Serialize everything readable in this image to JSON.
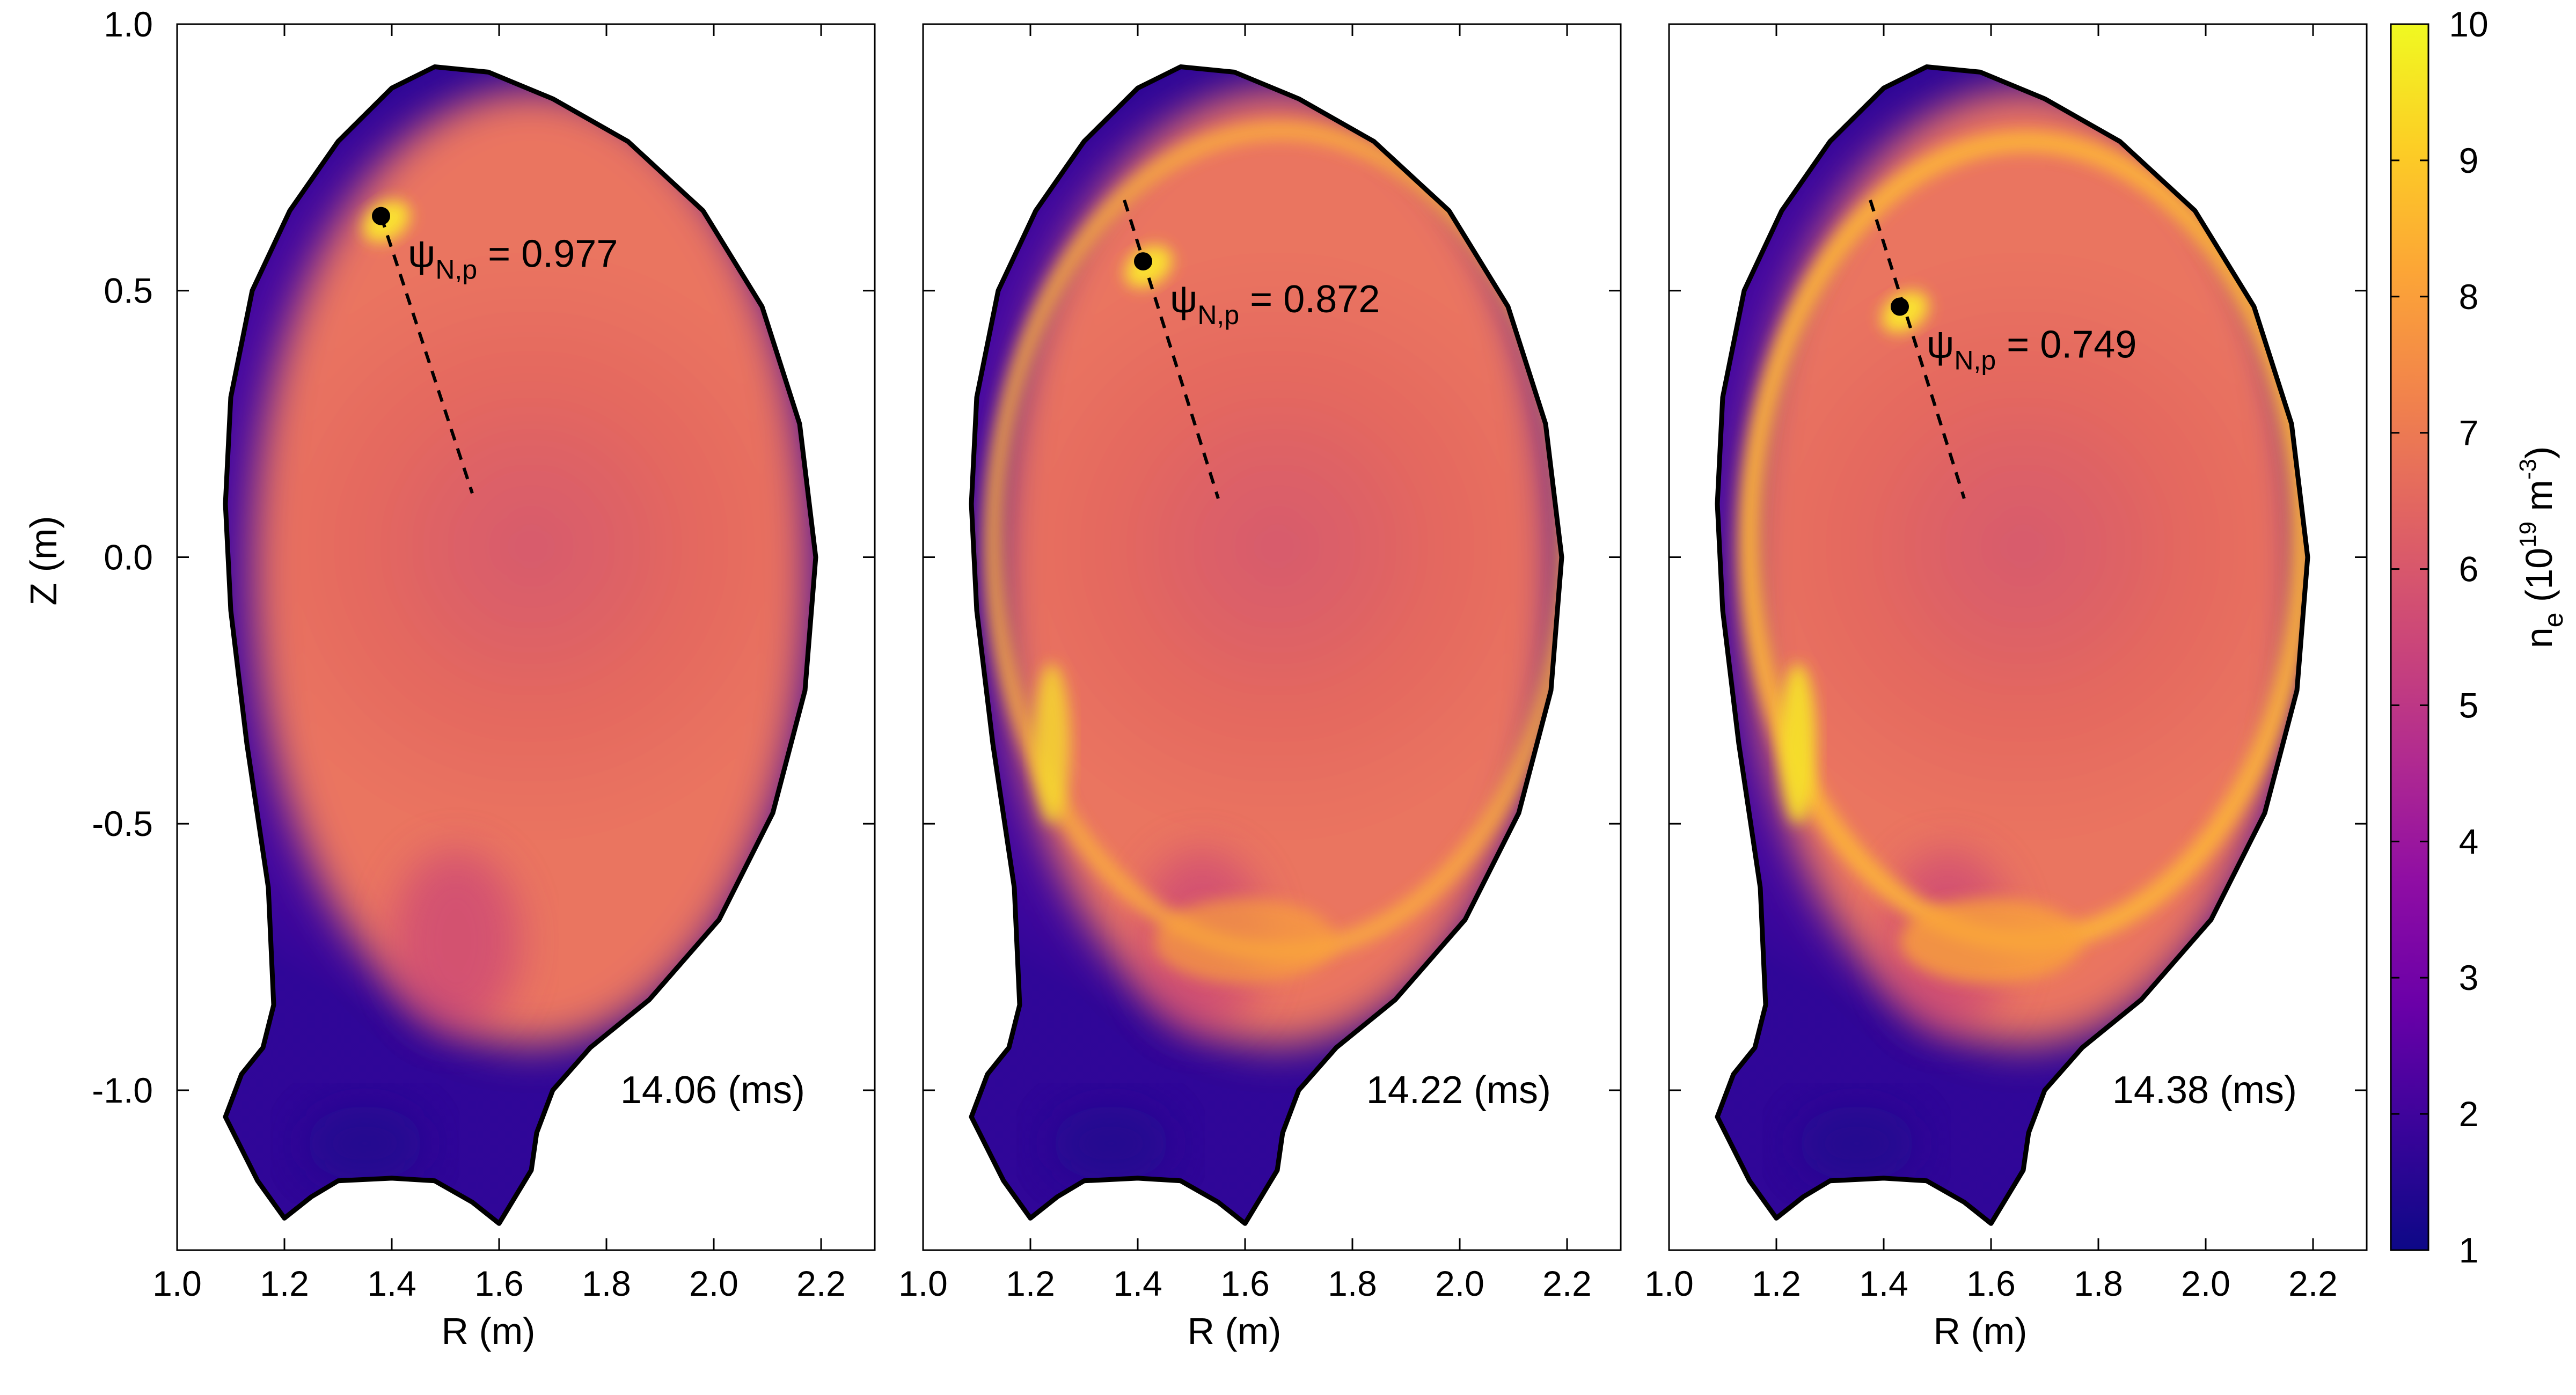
{
  "chart_data": {
    "type": "heatmap",
    "panels": [
      {
        "time_label": "14.06 (ms)",
        "psi_label": "0.977",
        "marker": {
          "R": 1.38,
          "Z": 0.64
        },
        "dashed_line": {
          "R": [
            1.38,
            1.55
          ],
          "Z": [
            0.64,
            0.12
          ]
        },
        "bright_ring_intensity": 0.0
      },
      {
        "time_label": "14.22 (ms)",
        "psi_label": "0.872",
        "marker": {
          "R": 1.41,
          "Z": 0.555
        },
        "dashed_line": {
          "R": [
            1.375,
            1.55
          ],
          "Z": [
            0.67,
            0.11
          ]
        },
        "bright_ring_intensity": 0.6
      },
      {
        "time_label": "14.38 (ms)",
        "psi_label": "0.749",
        "marker": {
          "R": 1.43,
          "Z": 0.47
        },
        "dashed_line": {
          "R": [
            1.375,
            1.55
          ],
          "Z": [
            0.67,
            0.11
          ]
        },
        "bright_ring_intensity": 1.0
      }
    ],
    "x_axis": {
      "label": "R (m)",
      "range": [
        1.0,
        2.3
      ],
      "ticks": [
        1.0,
        1.2,
        1.4,
        1.6,
        1.8,
        2.0,
        2.2
      ],
      "tick_labels": [
        "1.0",
        "1.2",
        "1.4",
        "1.6",
        "1.8",
        "2.0",
        "2.2"
      ]
    },
    "y_axis": {
      "label": "Z (m)",
      "range": [
        -1.3,
        1.0
      ],
      "ticks": [
        1.0,
        0.5,
        0.0,
        -0.5,
        -1.0
      ],
      "tick_labels": [
        "1.0",
        "0.5",
        "0.0",
        "-0.5",
        "-1.0"
      ]
    },
    "colorbar": {
      "range": [
        1,
        10
      ],
      "ticks": [
        1,
        2,
        3,
        4,
        5,
        6,
        7,
        8,
        9,
        10
      ],
      "tick_labels": [
        "1",
        "2",
        "3",
        "4",
        "5",
        "6",
        "7",
        "8",
        "9",
        "10"
      ],
      "label_main": "n",
      "label_sub": "e",
      "label_mid": " (10",
      "label_exp": "19",
      "label_unit": " m",
      "label_unit_exp": "-3",
      "label_close": ")",
      "colors": [
        "#0d0887",
        "#3a049a",
        "#6a00a8",
        "#8f0da4",
        "#b12a90",
        "#cc4778",
        "#e16462",
        "#f2844b",
        "#fca636",
        "#fcce25",
        "#f0f921"
      ]
    },
    "psi_symbol": "ψ",
    "psi_subscript": "N,p",
    "psi_equals": " = ",
    "boundary_RZ": [
      [
        1.2,
        -1.24
      ],
      [
        1.15,
        -1.17
      ],
      [
        1.09,
        -1.05
      ],
      [
        1.12,
        -0.97
      ],
      [
        1.16,
        -0.92
      ],
      [
        1.18,
        -0.84
      ],
      [
        1.17,
        -0.62
      ],
      [
        1.13,
        -0.35
      ],
      [
        1.1,
        -0.1
      ],
      [
        1.09,
        0.1
      ],
      [
        1.1,
        0.3
      ],
      [
        1.14,
        0.5
      ],
      [
        1.21,
        0.65
      ],
      [
        1.3,
        0.78
      ],
      [
        1.4,
        0.88
      ],
      [
        1.48,
        0.92
      ],
      [
        1.58,
        0.91
      ],
      [
        1.7,
        0.86
      ],
      [
        1.84,
        0.78
      ],
      [
        1.98,
        0.65
      ],
      [
        2.09,
        0.47
      ],
      [
        2.16,
        0.25
      ],
      [
        2.19,
        0.0
      ],
      [
        2.17,
        -0.25
      ],
      [
        2.11,
        -0.48
      ],
      [
        2.01,
        -0.68
      ],
      [
        1.88,
        -0.83
      ],
      [
        1.77,
        -0.92
      ],
      [
        1.7,
        -1.0
      ],
      [
        1.67,
        -1.08
      ],
      [
        1.66,
        -1.15
      ],
      [
        1.63,
        -1.2
      ],
      [
        1.6,
        -1.25
      ],
      [
        1.55,
        -1.21
      ],
      [
        1.48,
        -1.17
      ],
      [
        1.4,
        -1.165
      ],
      [
        1.3,
        -1.17
      ],
      [
        1.25,
        -1.2
      ]
    ]
  }
}
